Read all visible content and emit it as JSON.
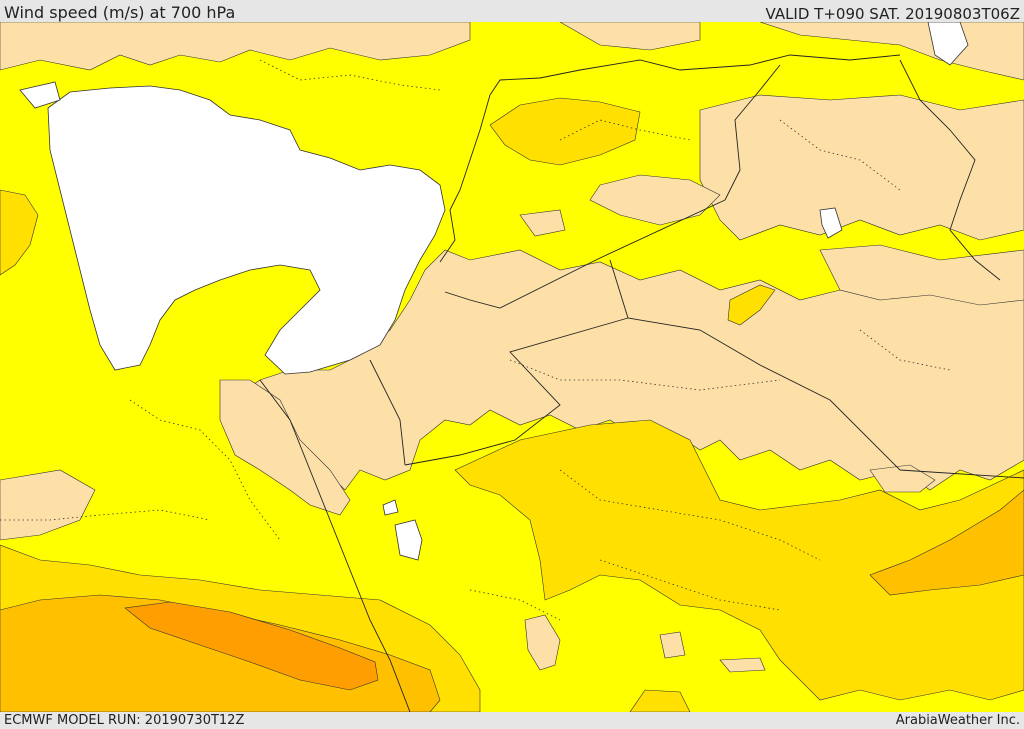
{
  "header": {
    "title": "Wind speed (m/s) at 700 hPa",
    "valid": "VALID T+090 SAT. 20190803T06Z"
  },
  "footer": {
    "model_run": "ECMWF MODEL RUN: 20190730T12Z",
    "credit": "ArabiaWeather Inc."
  },
  "map": {
    "variable": "wind speed",
    "units": "m/s",
    "level": "700 hPa",
    "colors": {
      "background_yellow": "#ffff00",
      "calm_tan": "#fde0a8",
      "moderate_gold": "#ffe000",
      "strong_orange": "#ffc000",
      "strongest_orange": "#ff9e00",
      "sea_white": "#ffffff"
    }
  }
}
